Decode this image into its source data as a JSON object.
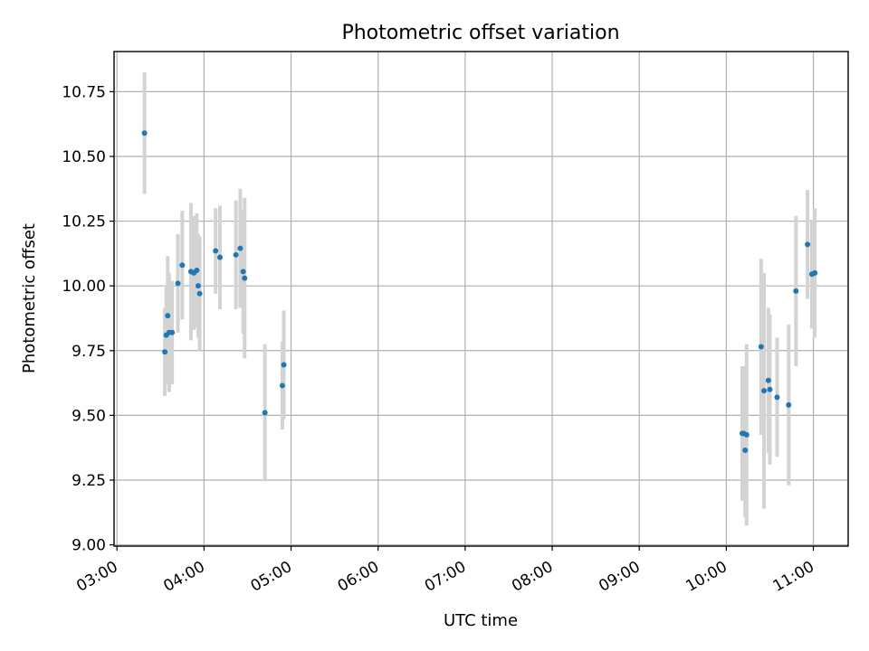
{
  "chart_data": {
    "type": "scatter",
    "title": "Photometric offset variation",
    "xlabel": "UTC time",
    "ylabel": "Photometric offset",
    "x_tick_labels": [
      "03:00",
      "04:00",
      "05:00",
      "06:00",
      "07:00",
      "08:00",
      "09:00",
      "10:00",
      "11:00"
    ],
    "y_tick_labels": [
      "9.00",
      "9.25",
      "9.50",
      "9.75",
      "10.00",
      "10.25",
      "10.50",
      "10.75"
    ],
    "y_ticks": [
      9.0,
      9.25,
      9.5,
      9.75,
      10.0,
      10.25,
      10.5,
      10.75
    ],
    "xlim": [
      "02:58",
      "11:24"
    ],
    "ylim": [
      8.995,
      10.905
    ],
    "grid": true,
    "colors": {
      "point": "#1f77b4",
      "errorbar": "#d3d3d3",
      "grid": "#b0b0b0",
      "axes": "#000000"
    },
    "points": [
      {
        "time": "03:19",
        "y": 10.59,
        "err": 0.235
      },
      {
        "time": "03:33",
        "y": 9.745,
        "err": 0.17
      },
      {
        "time": "03:34",
        "y": 9.81,
        "err": 0.19
      },
      {
        "time": "03:35",
        "y": 9.885,
        "err": 0.23
      },
      {
        "time": "03:36",
        "y": 9.82,
        "err": 0.23
      },
      {
        "time": "03:38",
        "y": 9.82,
        "err": 0.2
      },
      {
        "time": "03:42",
        "y": 10.01,
        "err": 0.19
      },
      {
        "time": "03:45",
        "y": 10.08,
        "err": 0.21
      },
      {
        "time": "03:51",
        "y": 10.055,
        "err": 0.265
      },
      {
        "time": "03:53",
        "y": 10.05,
        "err": 0.22
      },
      {
        "time": "03:55",
        "y": 10.06,
        "err": 0.22
      },
      {
        "time": "03:56",
        "y": 10.0,
        "err": 0.2
      },
      {
        "time": "03:57",
        "y": 9.97,
        "err": 0.22
      },
      {
        "time": "04:08",
        "y": 10.135,
        "err": 0.165
      },
      {
        "time": "04:11",
        "y": 10.11,
        "err": 0.2
      },
      {
        "time": "04:22",
        "y": 10.12,
        "err": 0.21
      },
      {
        "time": "04:25",
        "y": 10.145,
        "err": 0.23
      },
      {
        "time": "04:27",
        "y": 10.055,
        "err": 0.24
      },
      {
        "time": "04:28",
        "y": 10.03,
        "err": 0.31
      },
      {
        "time": "04:42",
        "y": 9.51,
        "err": 0.265
      },
      {
        "time": "04:54",
        "y": 9.615,
        "err": 0.17
      },
      {
        "time": "04:55",
        "y": 9.695,
        "err": 0.21
      },
      {
        "time": "10:11",
        "y": 9.43,
        "err": 0.26
      },
      {
        "time": "10:12",
        "y": 9.43,
        "err": 0.26
      },
      {
        "time": "10:13",
        "y": 9.365,
        "err": 0.26
      },
      {
        "time": "10:14",
        "y": 9.425,
        "err": 0.35
      },
      {
        "time": "10:24",
        "y": 9.765,
        "err": 0.34
      },
      {
        "time": "10:26",
        "y": 9.595,
        "err": 0.455
      },
      {
        "time": "10:29",
        "y": 9.635,
        "err": 0.28
      },
      {
        "time": "10:30",
        "y": 9.6,
        "err": 0.29
      },
      {
        "time": "10:35",
        "y": 9.57,
        "err": 0.23
      },
      {
        "time": "10:43",
        "y": 9.54,
        "err": 0.31
      },
      {
        "time": "10:48",
        "y": 9.98,
        "err": 0.29
      },
      {
        "time": "10:56",
        "y": 10.16,
        "err": 0.21
      },
      {
        "time": "10:59",
        "y": 10.045,
        "err": 0.21
      },
      {
        "time": "11:01",
        "y": 10.05,
        "err": 0.25
      }
    ]
  }
}
